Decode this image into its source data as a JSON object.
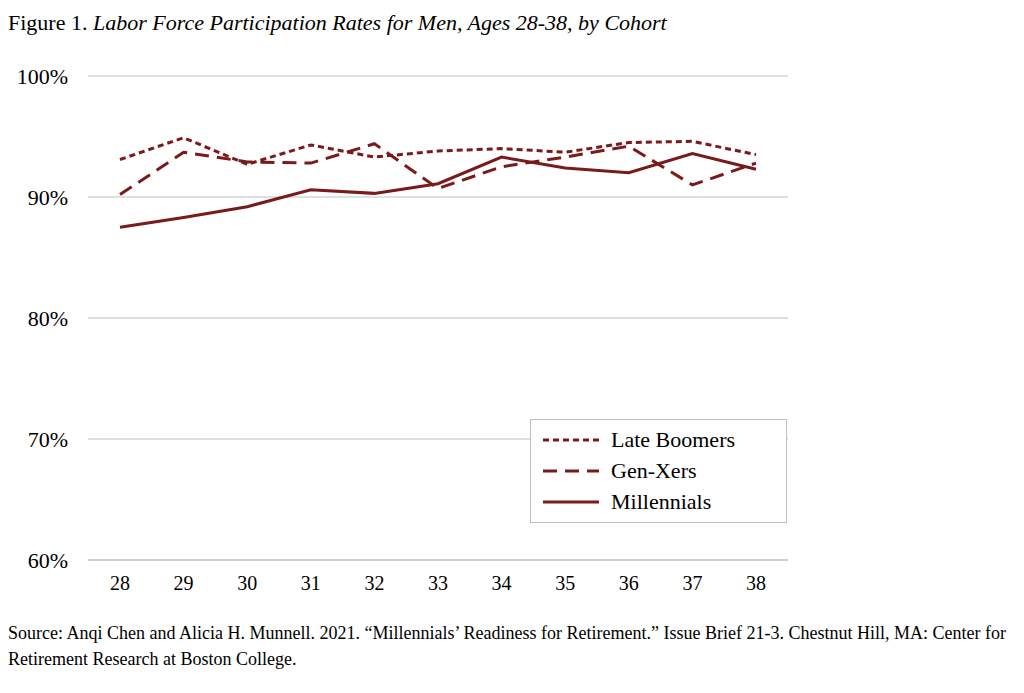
{
  "chart_data": {
    "type": "line",
    "title": "Figure 1. Labor Force Participation Rates for Men, Ages 28-38, by Cohort",
    "annotations": [
      "Source: Anqi Chen and Alicia H. Munnell. 2021. “Millennials’ Readiness for Retirement.” Issue Brief 21-3. Chestnut Hill, MA: Center for Retirement Research at Boston College."
    ],
    "categories": [
      "28",
      "29",
      "30",
      "31",
      "32",
      "33",
      "34",
      "35",
      "36",
      "37",
      "38"
    ],
    "series": [
      {
        "name": "Late Boomers",
        "color": "#7b1a1a",
        "line_style": "short_dash",
        "values": [
          93.1,
          94.9,
          92.7,
          94.3,
          93.3,
          93.8,
          94.0,
          93.7,
          94.5,
          94.6,
          93.5
        ]
      },
      {
        "name": "Gen-Xers",
        "color": "#7b1a1a",
        "line_style": "long_dash",
        "values": [
          90.2,
          93.7,
          92.9,
          92.8,
          94.4,
          90.7,
          92.5,
          93.3,
          94.2,
          91.0,
          92.8
        ]
      },
      {
        "name": "Millennials",
        "color": "#7b1a1a",
        "line_style": "solid",
        "values": [
          87.5,
          88.3,
          89.2,
          90.6,
          90.3,
          91.1,
          93.3,
          92.4,
          92.0,
          93.6,
          92.3
        ]
      }
    ],
    "ylim": [
      60,
      100
    ],
    "yticks": [
      {
        "value": 60,
        "label": "60%"
      },
      {
        "value": 70,
        "label": "70%"
      },
      {
        "value": 80,
        "label": "80%"
      },
      {
        "value": 90,
        "label": "90%"
      },
      {
        "value": 100,
        "label": "100%"
      }
    ],
    "grid": true,
    "legend": "lower right"
  }
}
